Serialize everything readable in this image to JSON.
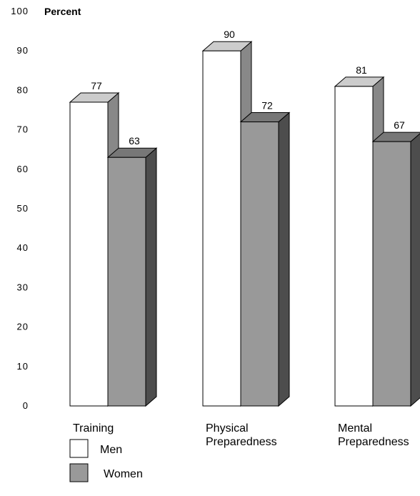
{
  "chart_data": {
    "type": "bar",
    "ylabel": "Percent",
    "ylim": [
      0,
      100
    ],
    "yticks": [
      0,
      10,
      20,
      30,
      40,
      50,
      60,
      70,
      80,
      90,
      100
    ],
    "categories": [
      "Training",
      "Physical Preparedness",
      "Mental Preparedness"
    ],
    "series": [
      {
        "name": "Men",
        "values": [
          77,
          90,
          81
        ],
        "color": "#ffffff"
      },
      {
        "name": "Women",
        "values": [
          63,
          72,
          67
        ],
        "color": "#999999"
      }
    ],
    "grid": false,
    "legend_position": "bottom-left",
    "style": "3d-bar"
  }
}
